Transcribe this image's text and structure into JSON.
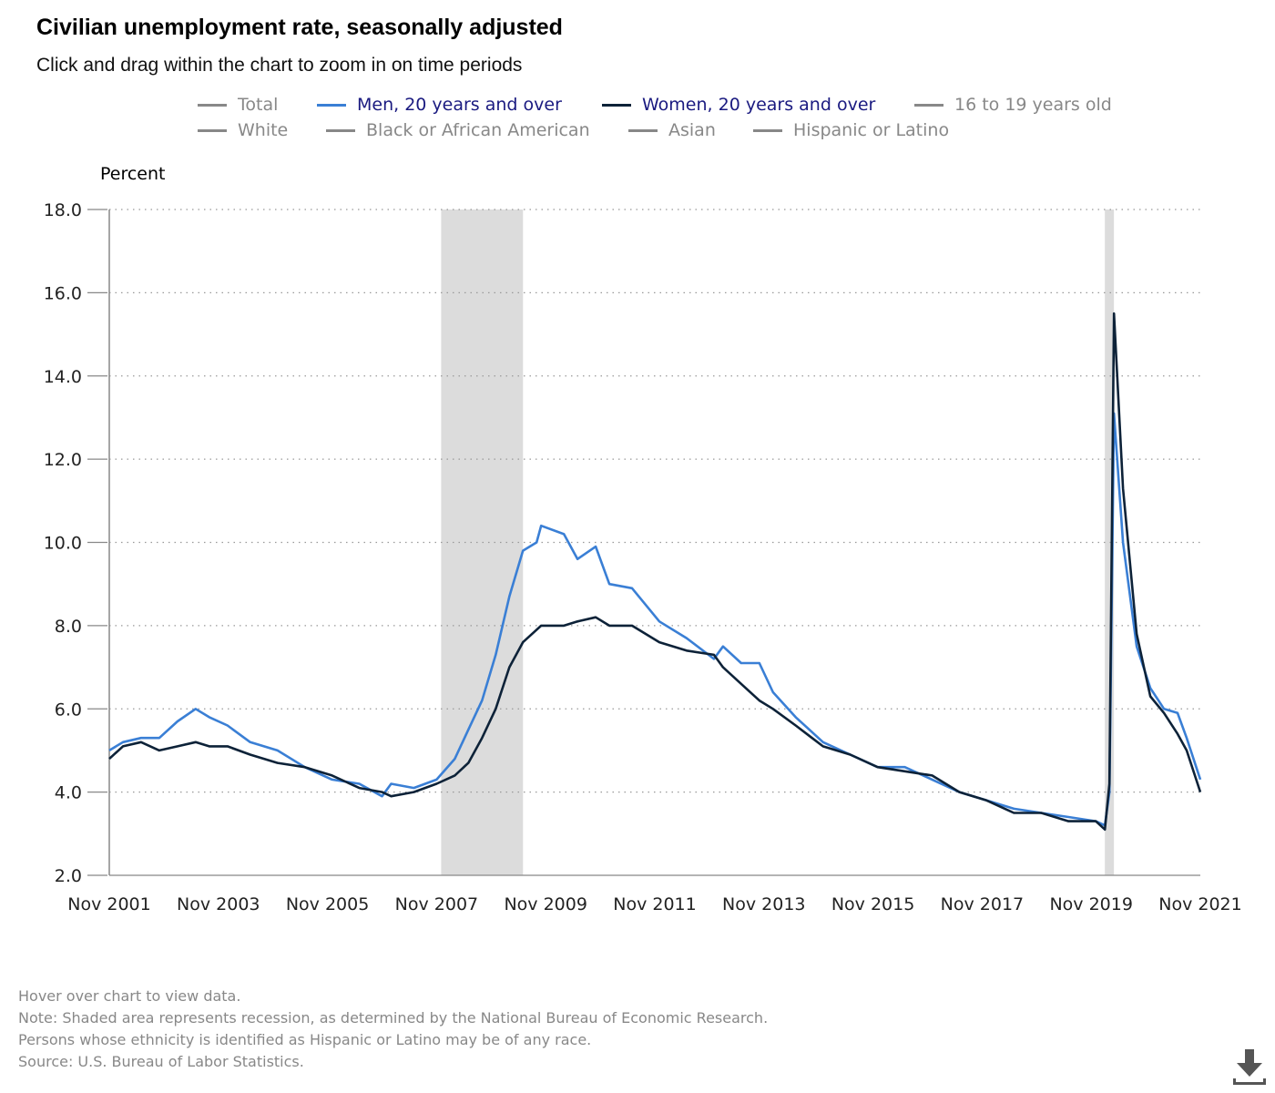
{
  "header": {
    "title": "Civilian unemployment rate, seasonally adjusted",
    "subtitle": "Click and drag within the chart to zoom in on time periods"
  },
  "legend": {
    "row1": [
      {
        "label": "Total",
        "color": "#888888",
        "text_color": "#888888"
      },
      {
        "label": "Men, 20 years and over",
        "color": "#3a7fd5",
        "text_color": "#1a1a80"
      },
      {
        "label": "Women, 20 years and over",
        "color": "#0d2238",
        "text_color": "#1a1a80"
      },
      {
        "label": "16 to 19 years old",
        "color": "#888888",
        "text_color": "#888888"
      }
    ],
    "row2": [
      {
        "label": "White",
        "color": "#888888",
        "text_color": "#888888"
      },
      {
        "label": "Black or African American",
        "color": "#888888",
        "text_color": "#888888"
      },
      {
        "label": "Asian",
        "color": "#888888",
        "text_color": "#888888"
      },
      {
        "label": "Hispanic or Latino",
        "color": "#888888",
        "text_color": "#888888"
      }
    ]
  },
  "chart_data": {
    "type": "line",
    "ylabel": "Percent",
    "ylim": [
      2.0,
      18.0
    ],
    "yticks": [
      "2.0",
      "4.0",
      "6.0",
      "8.0",
      "10.0",
      "12.0",
      "14.0",
      "16.0",
      "18.0"
    ],
    "x_range": [
      "Nov 2001",
      "Nov 2021"
    ],
    "x_ticks": [
      "Nov 2001",
      "Nov 2003",
      "Nov 2005",
      "Nov 2007",
      "Nov 2009",
      "Nov 2011",
      "Nov 2013",
      "Nov 2015",
      "Nov 2017",
      "Nov 2019",
      "Nov 2021"
    ],
    "grid": "horizontal dotted",
    "recessions": [
      {
        "start": "Dec 2007",
        "end": "Jun 2009"
      },
      {
        "start": "Feb 2020",
        "end": "Apr 2020"
      }
    ],
    "series": [
      {
        "name": "Men, 20 years and over",
        "color": "#3a7fd5",
        "points": [
          [
            "Nov 2001",
            5.0
          ],
          [
            "Feb 2002",
            5.2
          ],
          [
            "Jun 2002",
            5.3
          ],
          [
            "Oct 2002",
            5.3
          ],
          [
            "Feb 2003",
            5.7
          ],
          [
            "Jun 2003",
            6.0
          ],
          [
            "Sep 2003",
            5.8
          ],
          [
            "Jan 2004",
            5.6
          ],
          [
            "Jun 2004",
            5.2
          ],
          [
            "Dec 2004",
            5.0
          ],
          [
            "Jun 2005",
            4.6
          ],
          [
            "Dec 2005",
            4.3
          ],
          [
            "Jun 2006",
            4.2
          ],
          [
            "Nov 2006",
            3.9
          ],
          [
            "Jan 2007",
            4.2
          ],
          [
            "Jun 2007",
            4.1
          ],
          [
            "Nov 2007",
            4.3
          ],
          [
            "Mar 2008",
            4.8
          ],
          [
            "Jun 2008",
            5.5
          ],
          [
            "Sep 2008",
            6.2
          ],
          [
            "Dec 2008",
            7.3
          ],
          [
            "Mar 2009",
            8.7
          ],
          [
            "Jun 2009",
            9.8
          ],
          [
            "Sep 2009",
            10.0
          ],
          [
            "Oct 2009",
            10.4
          ],
          [
            "Mar 2010",
            10.2
          ],
          [
            "Jun 2010",
            9.6
          ],
          [
            "Oct 2010",
            9.9
          ],
          [
            "Jan 2011",
            9.0
          ],
          [
            "Jun 2011",
            8.9
          ],
          [
            "Dec 2011",
            8.1
          ],
          [
            "Jun 2012",
            7.7
          ],
          [
            "Dec 2012",
            7.2
          ],
          [
            "Feb 2013",
            7.5
          ],
          [
            "Jun 2013",
            7.1
          ],
          [
            "Oct 2013",
            7.1
          ],
          [
            "Jan 2014",
            6.4
          ],
          [
            "Jun 2014",
            5.8
          ],
          [
            "Dec 2014",
            5.2
          ],
          [
            "Jun 2015",
            4.9
          ],
          [
            "Dec 2015",
            4.6
          ],
          [
            "Jun 2016",
            4.6
          ],
          [
            "Dec 2016",
            4.3
          ],
          [
            "Jun 2017",
            4.0
          ],
          [
            "Dec 2017",
            3.8
          ],
          [
            "Jun 2018",
            3.6
          ],
          [
            "Dec 2018",
            3.5
          ],
          [
            "Jun 2019",
            3.4
          ],
          [
            "Dec 2019",
            3.3
          ],
          [
            "Feb 2020",
            3.2
          ],
          [
            "Mar 2020",
            4.0
          ],
          [
            "Apr 2020",
            13.1
          ],
          [
            "Jun 2020",
            10.0
          ],
          [
            "Sep 2020",
            7.5
          ],
          [
            "Dec 2020",
            6.5
          ],
          [
            "Mar 2021",
            6.0
          ],
          [
            "Jun 2021",
            5.9
          ],
          [
            "Aug 2021",
            5.3
          ],
          [
            "Nov 2021",
            4.3
          ]
        ]
      },
      {
        "name": "Women, 20 years and over",
        "color": "#0d2238",
        "points": [
          [
            "Nov 2001",
            4.8
          ],
          [
            "Feb 2002",
            5.1
          ],
          [
            "Jun 2002",
            5.2
          ],
          [
            "Oct 2002",
            5.0
          ],
          [
            "Feb 2003",
            5.1
          ],
          [
            "Jun 2003",
            5.2
          ],
          [
            "Sep 2003",
            5.1
          ],
          [
            "Jan 2004",
            5.1
          ],
          [
            "Jun 2004",
            4.9
          ],
          [
            "Dec 2004",
            4.7
          ],
          [
            "Jun 2005",
            4.6
          ],
          [
            "Dec 2005",
            4.4
          ],
          [
            "Jun 2006",
            4.1
          ],
          [
            "Nov 2006",
            4.0
          ],
          [
            "Jan 2007",
            3.9
          ],
          [
            "Jun 2007",
            4.0
          ],
          [
            "Nov 2007",
            4.2
          ],
          [
            "Mar 2008",
            4.4
          ],
          [
            "Jun 2008",
            4.7
          ],
          [
            "Sep 2008",
            5.3
          ],
          [
            "Dec 2008",
            6.0
          ],
          [
            "Mar 2009",
            7.0
          ],
          [
            "Jun 2009",
            7.6
          ],
          [
            "Sep 2009",
            7.9
          ],
          [
            "Oct 2009",
            8.0
          ],
          [
            "Mar 2010",
            8.0
          ],
          [
            "Jun 2010",
            8.1
          ],
          [
            "Oct 2010",
            8.2
          ],
          [
            "Jan 2011",
            8.0
          ],
          [
            "Jun 2011",
            8.0
          ],
          [
            "Dec 2011",
            7.6
          ],
          [
            "Jun 2012",
            7.4
          ],
          [
            "Dec 2012",
            7.3
          ],
          [
            "Feb 2013",
            7.0
          ],
          [
            "Jun 2013",
            6.6
          ],
          [
            "Oct 2013",
            6.2
          ],
          [
            "Jan 2014",
            6.0
          ],
          [
            "Jun 2014",
            5.6
          ],
          [
            "Dec 2014",
            5.1
          ],
          [
            "Jun 2015",
            4.9
          ],
          [
            "Dec 2015",
            4.6
          ],
          [
            "Jun 2016",
            4.5
          ],
          [
            "Dec 2016",
            4.4
          ],
          [
            "Jun 2017",
            4.0
          ],
          [
            "Dec 2017",
            3.8
          ],
          [
            "Jun 2018",
            3.5
          ],
          [
            "Dec 2018",
            3.5
          ],
          [
            "Jun 2019",
            3.3
          ],
          [
            "Dec 2019",
            3.3
          ],
          [
            "Feb 2020",
            3.1
          ],
          [
            "Mar 2020",
            4.2
          ],
          [
            "Apr 2020",
            15.5
          ],
          [
            "Jun 2020",
            11.3
          ],
          [
            "Sep 2020",
            7.8
          ],
          [
            "Dec 2020",
            6.3
          ],
          [
            "Mar 2021",
            5.9
          ],
          [
            "Jun 2021",
            5.4
          ],
          [
            "Aug 2021",
            5.0
          ],
          [
            "Nov 2021",
            4.0
          ]
        ]
      }
    ]
  },
  "notes": [
    "Hover over chart to view data.",
    "Note: Shaded area represents recession, as determined by the National Bureau of Economic Research.",
    "Persons whose ethnicity is identified as Hispanic or Latino may be of any race.",
    "Source: U.S. Bureau of Labor Statistics."
  ],
  "icons": {
    "download": "download-icon"
  }
}
